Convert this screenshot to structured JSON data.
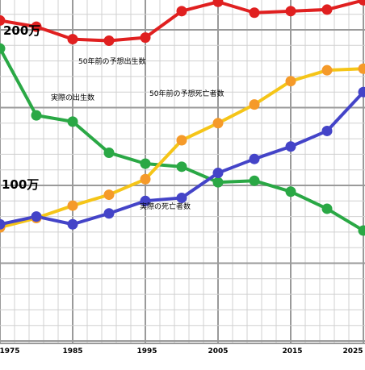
{
  "chart_data": {
    "type": "line",
    "x": [
      1975,
      1980,
      1985,
      1990,
      1995,
      2000,
      2005,
      2010,
      2015,
      2020,
      2025
    ],
    "xticks": [
      "1975",
      "1985",
      "1995",
      "2005",
      "2015",
      "2025"
    ],
    "yticks": [
      "200万",
      "100万"
    ],
    "ylim": [
      0,
      220
    ],
    "grid": true,
    "series": [
      {
        "name": "50年前の予想出生数",
        "color": "#e02020",
        "point_color": "#e02020",
        "values": [
          206,
          202,
          194,
          193,
          195,
          212,
          218,
          211,
          212,
          213,
          219
        ]
      },
      {
        "name": "実際の出生数",
        "color": "#2aa845",
        "point_color": "#2aa845",
        "values": [
          188,
          145,
          141,
          121,
          114,
          112,
          102,
          103,
          96,
          85,
          71
        ]
      },
      {
        "name": "50年前の予想死亡者数",
        "color": "#f5c518",
        "point_color": "#f59a2a",
        "values": [
          73,
          79,
          87,
          94,
          104,
          129,
          140,
          152,
          167,
          174,
          175
        ]
      },
      {
        "name": "実際の死亡者数",
        "color": "#4444c8",
        "point_color": "#4444c8",
        "values": [
          75,
          80,
          75,
          82,
          90,
          92,
          108,
          117,
          125,
          135,
          160
        ]
      }
    ]
  }
}
